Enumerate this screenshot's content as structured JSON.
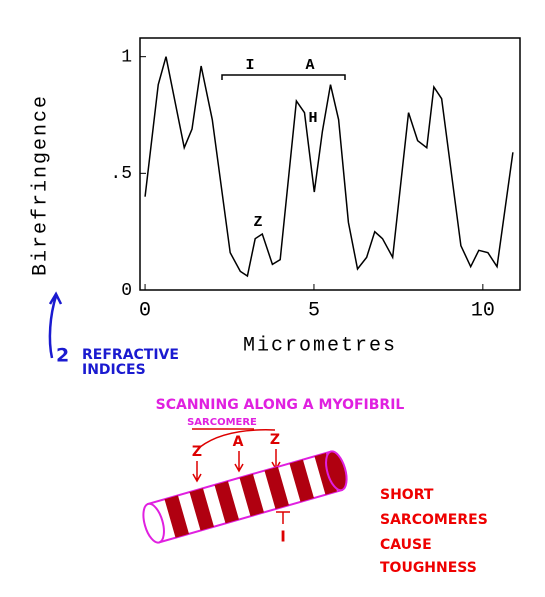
{
  "chart_data": {
    "type": "line",
    "x": [
      0,
      0.39,
      0.62,
      1.16,
      1.39,
      1.66,
      1.99,
      2.52,
      2.82,
      3.03,
      3.26,
      3.47,
      3.77,
      4.0,
      4.48,
      4.72,
      5.01,
      5.25,
      5.49,
      5.73,
      6.02,
      6.29,
      6.56,
      6.8,
      7.03,
      7.33,
      7.8,
      8.07,
      8.34,
      8.55,
      8.78,
      9.35,
      9.64,
      9.88,
      10.15,
      10.42,
      10.89
    ],
    "values": [
      0.4,
      0.88,
      1.0,
      0.61,
      0.69,
      0.96,
      0.73,
      0.16,
      0.08,
      0.06,
      0.22,
      0.24,
      0.11,
      0.13,
      0.81,
      0.76,
      0.42,
      0.68,
      0.88,
      0.73,
      0.29,
      0.09,
      0.14,
      0.25,
      0.22,
      0.14,
      0.76,
      0.64,
      0.61,
      0.87,
      0.82,
      0.19,
      0.1,
      0.17,
      0.16,
      0.1,
      0.59
    ],
    "color": "#000000",
    "xlabel": "Micrometres",
    "ylabel": "Birefringence",
    "xlim": [
      -0.15,
      11.1
    ],
    "ylim": [
      0,
      1.08
    ],
    "xticks": [
      0,
      5,
      10
    ],
    "yticks": [
      0,
      {
        "value": 0.5,
        "label": ".5"
      },
      1
    ],
    "annotations": [
      "I",
      "A",
      "H",
      "Z"
    ]
  },
  "diagram": {
    "refractive_number": "2",
    "refractive_text": [
      "REFRACTIVE",
      "INDICES"
    ],
    "title": "SCANNING ALONG A MYOFIBRIL",
    "sarcomere": "SARCOMERE",
    "labels": [
      "Z",
      "A",
      "Z"
    ],
    "i_label": "I",
    "note": [
      "SHORT",
      "SARCOMERES",
      "CAUSE",
      "TOUGHNESS"
    ]
  }
}
